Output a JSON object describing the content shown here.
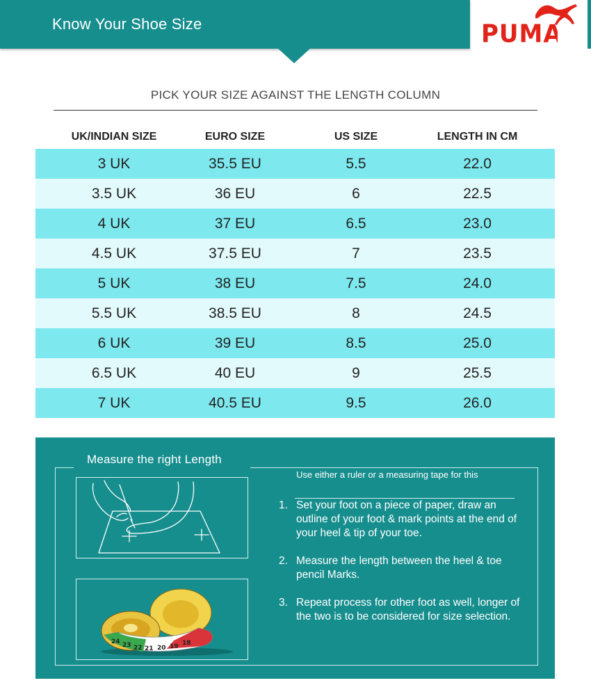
{
  "header": {
    "title": "Know Your Shoe Size",
    "logo_text": "PUMA",
    "brand_color": "#e2231a",
    "accent_color": "#178e8e"
  },
  "instruction": "PICK YOUR SIZE AGAINST THE LENGTH COLUMN",
  "table": {
    "columns": [
      "UK/INDIAN SIZE",
      "EURO SIZE",
      "US SIZE",
      "LENGTH IN CM"
    ],
    "rows": [
      [
        "3 UK",
        "35.5 EU",
        "5.5",
        "22.0"
      ],
      [
        "3.5 UK",
        "36 EU",
        "6",
        "22.5"
      ],
      [
        "4 UK",
        "37 EU",
        "6.5",
        "23.0"
      ],
      [
        "4.5 UK",
        "37.5 EU",
        "7",
        "23.5"
      ],
      [
        "5 UK",
        "38 EU",
        "7.5",
        "24.0"
      ],
      [
        "5.5 UK",
        "38.5 EU",
        "8",
        "24.5"
      ],
      [
        "6 UK",
        "39 EU",
        "8.5",
        "25.0"
      ],
      [
        "6.5 UK",
        "40 EU",
        "9",
        "25.5"
      ],
      [
        "7 UK",
        "40.5 EU",
        "9.5",
        "26.0"
      ]
    ],
    "row_colors": [
      "#7de8ee",
      "#e3fafc"
    ]
  },
  "measure": {
    "title": "Measure the right Length",
    "heading": "Use either a ruler or a measuring tape for this",
    "steps": [
      {
        "num": "1.",
        "text": "Set your foot on a piece of paper, draw an outline of your foot & mark points at the end of your heel & tip of your toe."
      },
      {
        "num": "2.",
        "text": "Measure the length between the heel & toe pencil Marks."
      },
      {
        "num": "3.",
        "text": "Repeat process for other foot as well, longer of the two is to be considered for size selection."
      }
    ],
    "images": [
      "foot-drawing-icon",
      "measuring-tape-icon"
    ],
    "tape_numbers": [
      "24",
      "23",
      "22",
      "21",
      "20",
      "19",
      "18"
    ]
  }
}
